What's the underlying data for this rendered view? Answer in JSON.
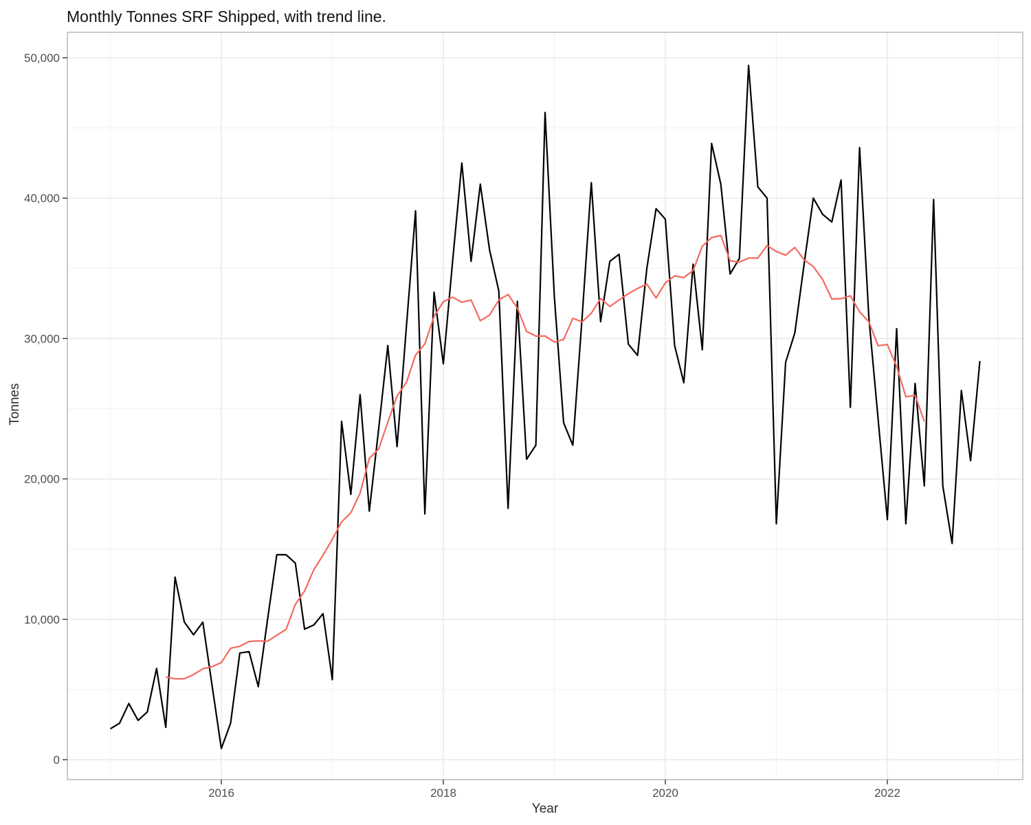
{
  "title": "Monthly Tonnes SRF Shipped, with trend line.",
  "x_axis": {
    "label": "Year",
    "tick_labels": [
      "2016",
      "2018",
      "2020",
      "2022"
    ],
    "tick_years": [
      2016,
      2018,
      2020,
      2022
    ],
    "major_grid_years": [
      2016,
      2018,
      2020,
      2022
    ],
    "minor_grid_years": [
      2015,
      2017,
      2019,
      2021,
      2023
    ]
  },
  "y_axis": {
    "label": "Tonnes",
    "tick_labels": [
      "0",
      "10,000",
      "20,000",
      "30,000",
      "40,000",
      "50,000"
    ],
    "tick_values": [
      0,
      10000,
      20000,
      30000,
      40000,
      50000
    ],
    "minor_grid_values": [
      5000,
      15000,
      25000,
      35000,
      45000
    ]
  },
  "colors": {
    "monthly_line": "#000000",
    "trend_line": "#F4695E",
    "grid_major": "#e4e4e4",
    "grid_minor": "#f1f1f1",
    "panel_border": "#bdbdbd",
    "tick_mark": "#333333",
    "axis_text": "#4d4d4d",
    "background": "#ffffff"
  },
  "chart_data": {
    "type": "line",
    "title": "Monthly Tonnes SRF Shipped, with trend line.",
    "xlabel": "Year",
    "ylabel": "Tonnes",
    "x_unit": "month",
    "x_range_months": [
      "2015-01",
      "2022-11"
    ],
    "ylim": [
      -1420,
      51810
    ],
    "grid": true,
    "legend": false,
    "series": [
      {
        "name": "monthly-tonnes",
        "color": "#000000",
        "start_month": "2015-01",
        "values": [
          2200,
          2600,
          4000,
          2800,
          3400,
          6500,
          2300,
          13000,
          9800,
          8900,
          9800,
          5300,
          800,
          2600,
          7600,
          7700,
          5200,
          10000,
          14600,
          14600,
          14000,
          9300,
          9600,
          10400,
          5700,
          24100,
          18900,
          26000,
          17700,
          23500,
          29500,
          22300,
          30800,
          39100,
          17500,
          33300,
          28200,
          35500,
          42500,
          35500,
          41000,
          36300,
          33400,
          17900,
          32650,
          21400,
          22400,
          46100,
          33000,
          24000,
          22400,
          31500,
          41100,
          31200,
          35500,
          36000,
          29600,
          28800,
          35000,
          39250,
          38500,
          29500,
          26850,
          35300,
          29200,
          43900,
          41000,
          34600,
          35700,
          49450,
          40800,
          40000,
          16800,
          28300,
          30400,
          35300,
          40000,
          38850,
          38300,
          41300,
          25100,
          43600,
          31500,
          24300,
          17100,
          30700,
          16800,
          26800,
          19500,
          39900,
          19500,
          15400,
          26300,
          21300,
          28400
        ]
      },
      {
        "name": "trend-12-month-centered-moving-average",
        "color": "#F4695E",
        "start_month": "2015-07",
        "values": [
          5885,
          5765,
          5765,
          6065,
          6475,
          6625,
          6915,
          7940,
          8075,
          8425,
          8460,
          8440,
          8865,
          9275,
          11065,
          12010,
          13535,
          14575,
          15700,
          16940,
          17585,
          18985,
          21465,
          22125,
          24035,
          25910,
          26860,
          28825,
          29615,
          31560,
          32625,
          32950,
          32585,
          32740,
          31265,
          31670,
          32740,
          33140,
          32180,
          30505,
          30170,
          30180,
          29755,
          29930,
          31440,
          31185,
          31800,
          32850,
          32280,
          32740,
          33195,
          33565,
          33885,
          32890,
          33960,
          34460,
          34340,
          34850,
          36570,
          37195,
          37340,
          35535,
          35435,
          35730,
          35730,
          36630,
          36200,
          35935,
          36490,
          35610,
          35120,
          34205,
          32815,
          32840,
          33040,
          31905,
          31195,
          29490,
          29575,
          28010,
          25850,
          25950,
          24090
        ]
      }
    ]
  }
}
